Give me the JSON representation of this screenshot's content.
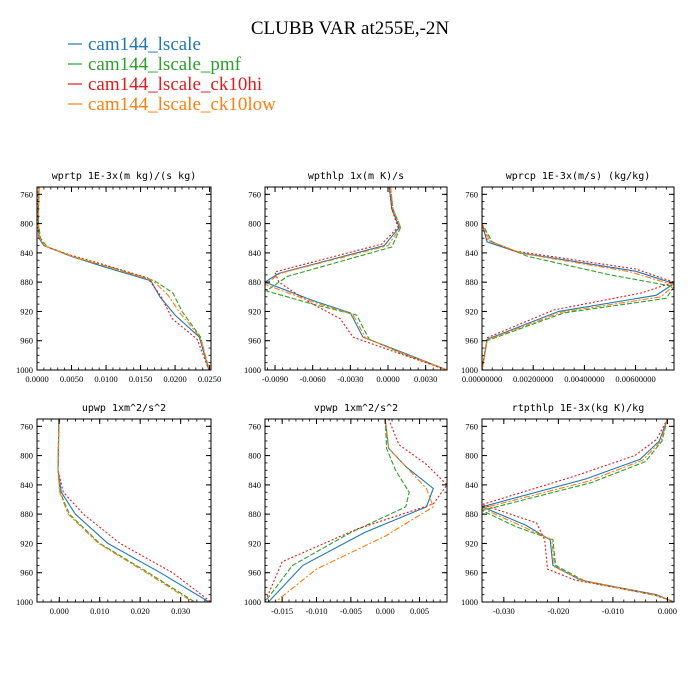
{
  "figure": {
    "title": "CLUBB VAR at255E,-2N",
    "legend": [
      {
        "label": "cam144_lscale",
        "color": "#1f77b4"
      },
      {
        "label": "cam144_lscale_pmf",
        "color": "#2ca02c"
      },
      {
        "label": "cam144_lscale_ck10hi",
        "color": "#e41a1c"
      },
      {
        "label": "cam144_lscale_ck10low",
        "color": "#ff7f0e"
      }
    ]
  },
  "chart_data": [
    {
      "type": "line",
      "title": "wprtp  1E-3x(m kg)/(s kg)",
      "xlim": [
        0.0,
        0.0252
      ],
      "ylim": [
        1000,
        750
      ],
      "xticks": [
        0.0,
        0.005,
        0.01,
        0.015,
        0.02,
        0.025
      ],
      "xtick_labels": [
        "0.0000",
        "0.0050",
        "0.0100",
        "0.0150",
        "0.0200",
        "0.0250"
      ],
      "yticks": [
        760,
        800,
        840,
        880,
        920,
        960,
        1000
      ],
      "series": [
        {
          "name": "cam144_lscale",
          "x": [
            0.0003,
            0.0002,
            0.0002,
            0.0003,
            0.001,
            0.005,
            0.01,
            0.0165,
            0.0178,
            0.02,
            0.0235,
            0.0249
          ],
          "y": [
            750,
            780,
            800,
            820,
            830,
            845,
            860,
            878,
            900,
            925,
            955,
            1000
          ]
        },
        {
          "name": "cam144_lscale_pmf",
          "x": [
            0.0003,
            0.0002,
            0.0002,
            0.0005,
            0.0015,
            0.006,
            0.0115,
            0.017,
            0.0197,
            0.021,
            0.0237,
            0.0249
          ],
          "y": [
            750,
            780,
            800,
            820,
            832,
            848,
            862,
            878,
            895,
            920,
            955,
            1000
          ]
        },
        {
          "name": "cam144_lscale_ck10hi",
          "x": [
            0.0002,
            0.0001,
            0.0001,
            0.0003,
            0.001,
            0.0045,
            0.01,
            0.016,
            0.018,
            0.0196,
            0.0232,
            0.0249
          ],
          "y": [
            750,
            780,
            800,
            820,
            830,
            842,
            857,
            874,
            900,
            930,
            958,
            1000
          ]
        },
        {
          "name": "cam144_lscale_ck10low",
          "x": [
            0.0003,
            0.0002,
            0.0002,
            0.0004,
            0.0012,
            0.0055,
            0.011,
            0.0168,
            0.019,
            0.0207,
            0.0236,
            0.025
          ],
          "y": [
            750,
            780,
            800,
            820,
            831,
            846,
            861,
            878,
            898,
            922,
            955,
            1000
          ]
        }
      ]
    },
    {
      "type": "line",
      "title": "wpthlp  1x(m K)/s",
      "xlim": [
        -0.0098,
        0.0047
      ],
      "ylim": [
        1000,
        750
      ],
      "xticks": [
        -0.009,
        -0.006,
        -0.003,
        0.0,
        0.003
      ],
      "xtick_labels": [
        "-0.0090",
        "-0.0060",
        "-0.0030",
        "0.0000",
        "0.0030"
      ],
      "yticks": [
        760,
        800,
        840,
        880,
        920,
        960,
        1000
      ],
      "series": [
        {
          "name": "cam144_lscale",
          "x": [
            0.0001,
            0.0003,
            0.0009,
            -0.0003,
            -0.0087,
            -0.0098,
            -0.006,
            -0.003,
            -0.002,
            0.001,
            0.0047
          ],
          "y": [
            750,
            780,
            805,
            830,
            868,
            880,
            905,
            922,
            955,
            975,
            1000
          ]
        },
        {
          "name": "cam144_lscale_pmf",
          "x": [
            0.0002,
            0.0004,
            0.001,
            0.0003,
            -0.008,
            -0.0097,
            -0.006,
            -0.0025,
            -0.0015,
            0.0012,
            0.0047
          ],
          "y": [
            750,
            780,
            805,
            832,
            872,
            892,
            910,
            925,
            958,
            978,
            1000
          ]
        },
        {
          "name": "cam144_lscale_ck10hi",
          "x": [
            0.0001,
            0.0003,
            0.0008,
            -0.0005,
            -0.009,
            -0.0087,
            -0.0062,
            -0.0038,
            -0.0028,
            0.0005,
            0.0047
          ],
          "y": [
            750,
            780,
            805,
            828,
            866,
            880,
            908,
            930,
            955,
            975,
            1000
          ]
        },
        {
          "name": "cam144_lscale_ck10low",
          "x": [
            0.0002,
            0.0004,
            0.001,
            0.0,
            -0.0086,
            -0.0098,
            -0.006,
            -0.0028,
            -0.0018,
            0.001,
            0.0047
          ],
          "y": [
            750,
            780,
            805,
            830,
            868,
            883,
            907,
            924,
            956,
            976,
            1000
          ]
        }
      ]
    },
    {
      "type": "line",
      "title": "wprcp  1E-3x(m/s) (kg/kg)",
      "xlim": [
        0.0,
        0.0075
      ],
      "ylim": [
        1000,
        750
      ],
      "xticks": [
        0.0,
        0.002,
        0.004,
        0.006
      ],
      "xtick_labels": [
        "0.00000000",
        "0.00200000",
        "0.00400000",
        "0.00600000"
      ],
      "yticks": [
        760,
        800,
        840,
        880,
        920,
        960,
        1000
      ],
      "series": [
        {
          "name": "cam144_lscale",
          "x": [
            0.0,
            0.0,
            0.0,
            0.0002,
            0.0015,
            0.006,
            0.0075,
            0.0068,
            0.003,
            0.0002,
            0.0
          ],
          "y": [
            750,
            780,
            800,
            825,
            840,
            865,
            882,
            898,
            920,
            958,
            1000
          ]
        },
        {
          "name": "cam144_lscale_pmf",
          "x": [
            0.0,
            0.0,
            0.0,
            0.0004,
            0.0018,
            0.005,
            0.0075,
            0.0072,
            0.0032,
            0.0002,
            0.0
          ],
          "y": [
            750,
            780,
            800,
            825,
            845,
            870,
            886,
            902,
            922,
            960,
            1000
          ]
        },
        {
          "name": "cam144_lscale_ck10hi",
          "x": [
            0.0,
            0.0,
            0.0,
            0.0002,
            0.0012,
            0.006,
            0.0075,
            0.0062,
            0.0028,
            0.0002,
            0.0
          ],
          "y": [
            750,
            780,
            800,
            822,
            837,
            862,
            880,
            895,
            918,
            956,
            1000
          ]
        },
        {
          "name": "cam144_lscale_ck10low",
          "x": [
            0.0,
            0.0,
            0.0,
            0.0003,
            0.0016,
            0.0058,
            0.0075,
            0.007,
            0.0031,
            0.0002,
            0.0
          ],
          "y": [
            750,
            780,
            800,
            824,
            841,
            866,
            884,
            900,
            921,
            959,
            1000
          ]
        }
      ]
    },
    {
      "type": "line",
      "title": "upwp  1xm^2/s^2",
      "xlim": [
        -0.0055,
        0.0375
      ],
      "ylim": [
        1000,
        750
      ],
      "xticks": [
        0.0,
        0.01,
        0.02,
        0.03
      ],
      "xtick_labels": [
        "0.000",
        "0.010",
        "0.020",
        "0.030"
      ],
      "yticks": [
        760,
        800,
        840,
        880,
        920,
        960,
        1000
      ],
      "series": [
        {
          "name": "cam144_lscale",
          "x": [
            -0.0001,
            -0.0002,
            -0.0003,
            0.0005,
            0.004,
            0.012,
            0.025,
            0.037
          ],
          "y": [
            750,
            790,
            820,
            850,
            880,
            920,
            960,
            1000
          ]
        },
        {
          "name": "cam144_lscale_pmf",
          "x": [
            -0.0001,
            -0.0002,
            -0.0003,
            0.0002,
            0.0025,
            0.01,
            0.022,
            0.0335
          ],
          "y": [
            750,
            790,
            820,
            850,
            880,
            920,
            960,
            1000
          ]
        },
        {
          "name": "cam144_lscale_ck10hi",
          "x": [
            -0.0001,
            -0.0002,
            -0.0003,
            0.001,
            0.006,
            0.015,
            0.028,
            0.0375
          ],
          "y": [
            750,
            790,
            820,
            850,
            880,
            920,
            960,
            1000
          ]
        },
        {
          "name": "cam144_lscale_ck10low",
          "x": [
            -0.0001,
            -0.0002,
            -0.0003,
            0.0001,
            0.0022,
            0.0097,
            0.0215,
            0.033
          ],
          "y": [
            750,
            790,
            820,
            850,
            880,
            920,
            960,
            1000
          ]
        }
      ]
    },
    {
      "type": "line",
      "title": "vpwp  1xm^2/s^2",
      "xlim": [
        -0.0175,
        0.009
      ],
      "ylim": [
        1000,
        750
      ],
      "xticks": [
        -0.015,
        -0.01,
        -0.005,
        0.0,
        0.005
      ],
      "xtick_labels": [
        "-0.015",
        "-0.010",
        "-0.005",
        "0.000",
        "0.005"
      ],
      "yticks": [
        760,
        800,
        840,
        880,
        920,
        960,
        1000
      ],
      "series": [
        {
          "name": "cam144_lscale",
          "x": [
            0.0,
            0.0005,
            0.003,
            0.007,
            0.006,
            -0.003,
            -0.012,
            -0.017
          ],
          "y": [
            750,
            790,
            815,
            845,
            870,
            905,
            950,
            1000
          ]
        },
        {
          "name": "cam144_lscale_pmf",
          "x": [
            0.0,
            0.0002,
            0.0015,
            0.0035,
            0.003,
            -0.005,
            -0.0135,
            -0.0175
          ],
          "y": [
            750,
            790,
            820,
            850,
            870,
            905,
            950,
            1000
          ]
        },
        {
          "name": "cam144_lscale_ck10hi",
          "x": [
            0.0005,
            0.002,
            0.006,
            0.009,
            0.007,
            -0.004,
            -0.015,
            -0.0175
          ],
          "y": [
            750,
            785,
            812,
            840,
            866,
            900,
            945,
            1000
          ]
        },
        {
          "name": "cam144_lscale_ck10low",
          "x": [
            0.0,
            0.0005,
            0.003,
            0.006,
            0.007,
            0.0,
            -0.01,
            -0.016
          ],
          "y": [
            750,
            790,
            815,
            845,
            870,
            910,
            955,
            1000
          ]
        }
      ]
    },
    {
      "type": "line",
      "title": "rtpthlp  1E-3x(kg K)/kg",
      "xlim": [
        -0.034,
        0.0012
      ],
      "ylim": [
        1000,
        750
      ],
      "xticks": [
        -0.03,
        -0.02,
        -0.01,
        0.0
      ],
      "xtick_labels": [
        "-0.030",
        "-0.020",
        "-0.010",
        "0.000"
      ],
      "yticks": [
        760,
        800,
        840,
        880,
        920,
        960,
        1000
      ],
      "series": [
        {
          "name": "cam144_lscale",
          "x": [
            0.0,
            -0.0015,
            -0.005,
            -0.015,
            -0.034,
            -0.026,
            -0.0215,
            -0.021,
            -0.016,
            -0.002,
            0.0012
          ],
          "y": [
            750,
            780,
            805,
            832,
            870,
            895,
            915,
            950,
            970,
            990,
            1000
          ]
        },
        {
          "name": "cam144_lscale_pmf",
          "x": [
            0.0,
            -0.001,
            -0.004,
            -0.014,
            -0.034,
            -0.0275,
            -0.021,
            -0.0205,
            -0.015,
            -0.0015,
            0.0012
          ],
          "y": [
            750,
            780,
            808,
            837,
            875,
            898,
            915,
            950,
            972,
            992,
            1000
          ]
        },
        {
          "name": "cam144_lscale_ck10hi",
          "x": [
            0.0,
            -0.002,
            -0.006,
            -0.017,
            -0.034,
            -0.024,
            -0.0225,
            -0.022,
            -0.017,
            -0.0025,
            0.0012
          ],
          "y": [
            750,
            778,
            800,
            828,
            867,
            892,
            915,
            955,
            970,
            990,
            1000
          ]
        },
        {
          "name": "cam144_lscale_ck10low",
          "x": [
            0.0,
            -0.0012,
            -0.0045,
            -0.0145,
            -0.034,
            -0.0265,
            -0.0212,
            -0.0207,
            -0.0155,
            -0.0018,
            0.0012
          ],
          "y": [
            750,
            780,
            806,
            835,
            872,
            897,
            915,
            952,
            971,
            991,
            1000
          ]
        }
      ]
    }
  ]
}
